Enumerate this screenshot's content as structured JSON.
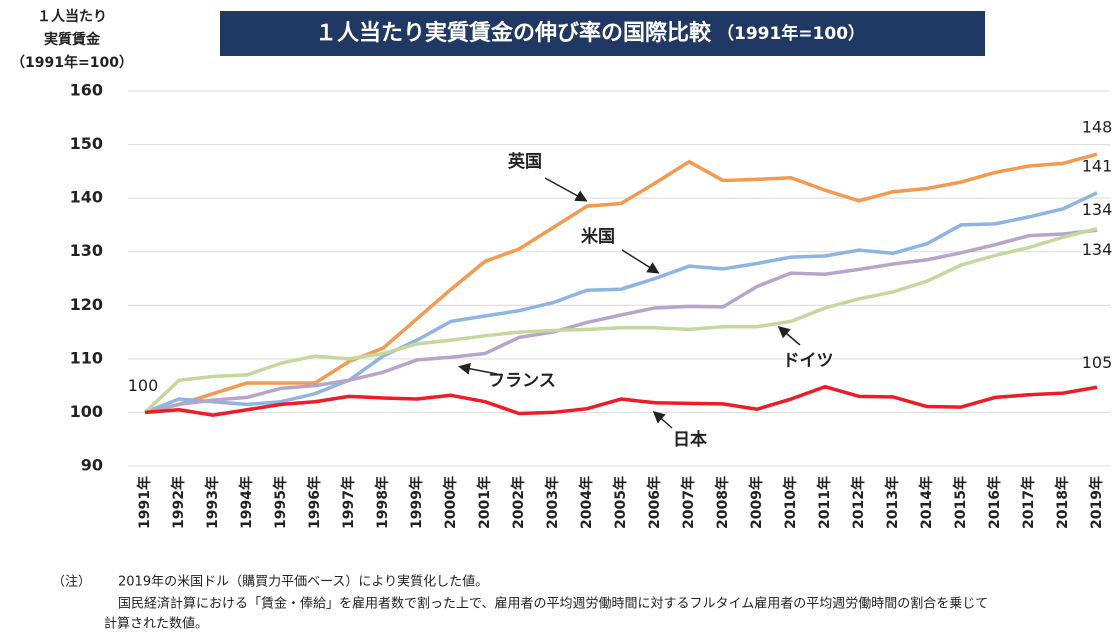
{
  "chart_data": {
    "type": "line",
    "title": "１人当たり実質賃金の伸び率の国際比較",
    "subtitle": "（1991年=100）",
    "y_axis_label": [
      "１人当たり",
      "実質賃金",
      "（1991年=100）"
    ],
    "categories": [
      "1991年",
      "1992年",
      "1993年",
      "1994年",
      "1995年",
      "1996年",
      "1997年",
      "1998年",
      "1999年",
      "2000年",
      "2001年",
      "2002年",
      "2003年",
      "2004年",
      "2005年",
      "2006年",
      "2007年",
      "2008年",
      "2009年",
      "2010年",
      "2011年",
      "2012年",
      "2013年",
      "2014年",
      "2015年",
      "2016年",
      "2017年",
      "2018年",
      "2019年"
    ],
    "ylim": [
      90,
      160
    ],
    "yticks": [
      90,
      100,
      110,
      120,
      130,
      140,
      150,
      160
    ],
    "grid": true,
    "series": [
      {
        "name": "英国",
        "color": "#f39a4f",
        "values": [
          100,
          101.5,
          103.5,
          105.5,
          105.5,
          105.5,
          109.5,
          112,
          117.5,
          123,
          128.2,
          130.5,
          134.5,
          138.5,
          139,
          142.8,
          146.8,
          143.3,
          143.5,
          143.8,
          141.5,
          139.5,
          141.2,
          141.8,
          143,
          144.8,
          146,
          146.5,
          148.2
        ],
        "value_labels": [
          "100",
          null,
          null,
          null,
          null,
          null,
          null,
          null,
          null,
          null,
          null,
          null,
          null,
          null,
          null,
          null,
          null,
          null,
          null,
          null,
          null,
          null,
          null,
          null,
          null,
          null,
          null,
          null,
          "148"
        ]
      },
      {
        "name": "米国",
        "color": "#8db4e2",
        "values": [
          100,
          102.5,
          102,
          101.5,
          102,
          103.5,
          106,
          110.5,
          113.5,
          117,
          118,
          119,
          120.5,
          122.8,
          123,
          125,
          127.3,
          126.8,
          127.8,
          129,
          129.2,
          130.3,
          129.7,
          131.5,
          135,
          135.2,
          136.5,
          138,
          141
        ],
        "value_labels": [
          null,
          null,
          null,
          null,
          null,
          null,
          null,
          null,
          null,
          null,
          null,
          null,
          null,
          null,
          null,
          null,
          null,
          null,
          null,
          null,
          null,
          null,
          null,
          null,
          null,
          null,
          null,
          null,
          "141"
        ]
      },
      {
        "name": "フランス",
        "color": "#b7a4cc",
        "values": [
          100,
          101.5,
          102.3,
          102.8,
          104.5,
          105,
          106,
          107.5,
          109.8,
          110.3,
          111,
          114,
          115,
          116.8,
          118.2,
          119.5,
          119.8,
          119.7,
          123.5,
          126,
          125.8,
          126.7,
          127.7,
          128.5,
          129.8,
          131.3,
          133,
          133.3,
          134
        ],
        "value_labels": [
          null,
          null,
          null,
          null,
          null,
          null,
          null,
          null,
          null,
          null,
          null,
          null,
          null,
          null,
          null,
          null,
          null,
          null,
          null,
          null,
          null,
          null,
          null,
          null,
          null,
          null,
          null,
          null,
          "134"
        ]
      },
      {
        "name": "ドイツ",
        "color": "#c4d89e",
        "values": [
          100,
          106,
          106.7,
          107,
          109.2,
          110.5,
          110,
          111,
          112.8,
          113.5,
          114.3,
          115,
          115.3,
          115.5,
          115.8,
          115.8,
          115.5,
          116,
          116,
          117,
          119.5,
          121.2,
          122.5,
          124.5,
          127.5,
          129.3,
          130.8,
          132.7,
          134.3
        ],
        "value_labels": [
          null,
          null,
          null,
          null,
          null,
          null,
          null,
          null,
          null,
          null,
          null,
          null,
          null,
          null,
          null,
          null,
          null,
          null,
          null,
          null,
          null,
          null,
          null,
          null,
          null,
          null,
          null,
          null,
          "134"
        ]
      },
      {
        "name": "日本",
        "color": "#ee1c25",
        "values": [
          100,
          100.5,
          99.5,
          100.5,
          101.5,
          102,
          103,
          102.7,
          102.5,
          103.2,
          102,
          99.8,
          100,
          100.7,
          102.5,
          101.8,
          101.7,
          101.6,
          100.6,
          102.5,
          104.8,
          103,
          102.9,
          101.1,
          101,
          102.8,
          103.3,
          103.6,
          104.7
        ],
        "value_labels": [
          null,
          null,
          null,
          null,
          null,
          null,
          null,
          null,
          null,
          null,
          null,
          null,
          null,
          null,
          null,
          null,
          null,
          null,
          null,
          null,
          null,
          null,
          null,
          null,
          null,
          null,
          null,
          null,
          "105"
        ]
      }
    ],
    "note_label": "（注）",
    "notes": [
      "2019年の米国ドル（購買力平価ベース）により実質化した値。",
      "国民経済計算における「賃金・俸給」を雇用者数で割った上で、雇用者の平均週労働時間に対するフルタイム雇用者の平均週労働時間の割合を乗じて",
      "計算された数値。"
    ]
  }
}
